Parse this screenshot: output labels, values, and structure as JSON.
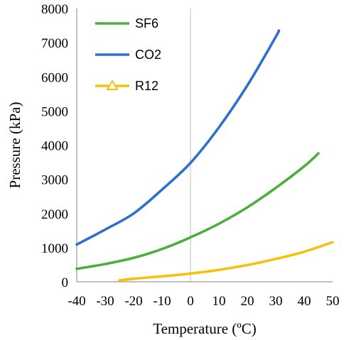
{
  "chart_data": {
    "type": "line",
    "xlabel": "Temperature (ºC)",
    "ylabel": "Pressure (kPa)",
    "xlim": [
      -40,
      50
    ],
    "ylim": [
      0,
      8000
    ],
    "xticks": [
      -40,
      -30,
      -20,
      -10,
      0,
      10,
      20,
      30,
      40,
      50
    ],
    "yticks": [
      0,
      1000,
      2000,
      3000,
      4000,
      5000,
      6000,
      7000,
      8000
    ],
    "reference_line_x": 0,
    "legend_position": "top-left",
    "series": [
      {
        "name": "SF6",
        "color": "#4caf3c",
        "marker": "none",
        "x": [
          -40,
          -30,
          -20,
          -10,
          0,
          10,
          20,
          30,
          40,
          45
        ],
        "y": [
          380,
          520,
          700,
          960,
          1300,
          1700,
          2180,
          2750,
          3380,
          3760
        ]
      },
      {
        "name": "CO2",
        "color": "#2f6fcf",
        "marker": "none",
        "x": [
          -40,
          -30,
          -20,
          -10,
          0,
          10,
          20,
          30,
          31
        ],
        "y": [
          1090,
          1530,
          2000,
          2700,
          3480,
          4520,
          5750,
          7170,
          7350
        ]
      },
      {
        "name": "R12",
        "color": "#f4c20d",
        "marker": "triangle",
        "x": [
          -25,
          -20,
          -10,
          0,
          10,
          20,
          30,
          40,
          50
        ],
        "y": [
          40,
          90,
          160,
          240,
          350,
          490,
          670,
          880,
          1160
        ]
      }
    ]
  }
}
